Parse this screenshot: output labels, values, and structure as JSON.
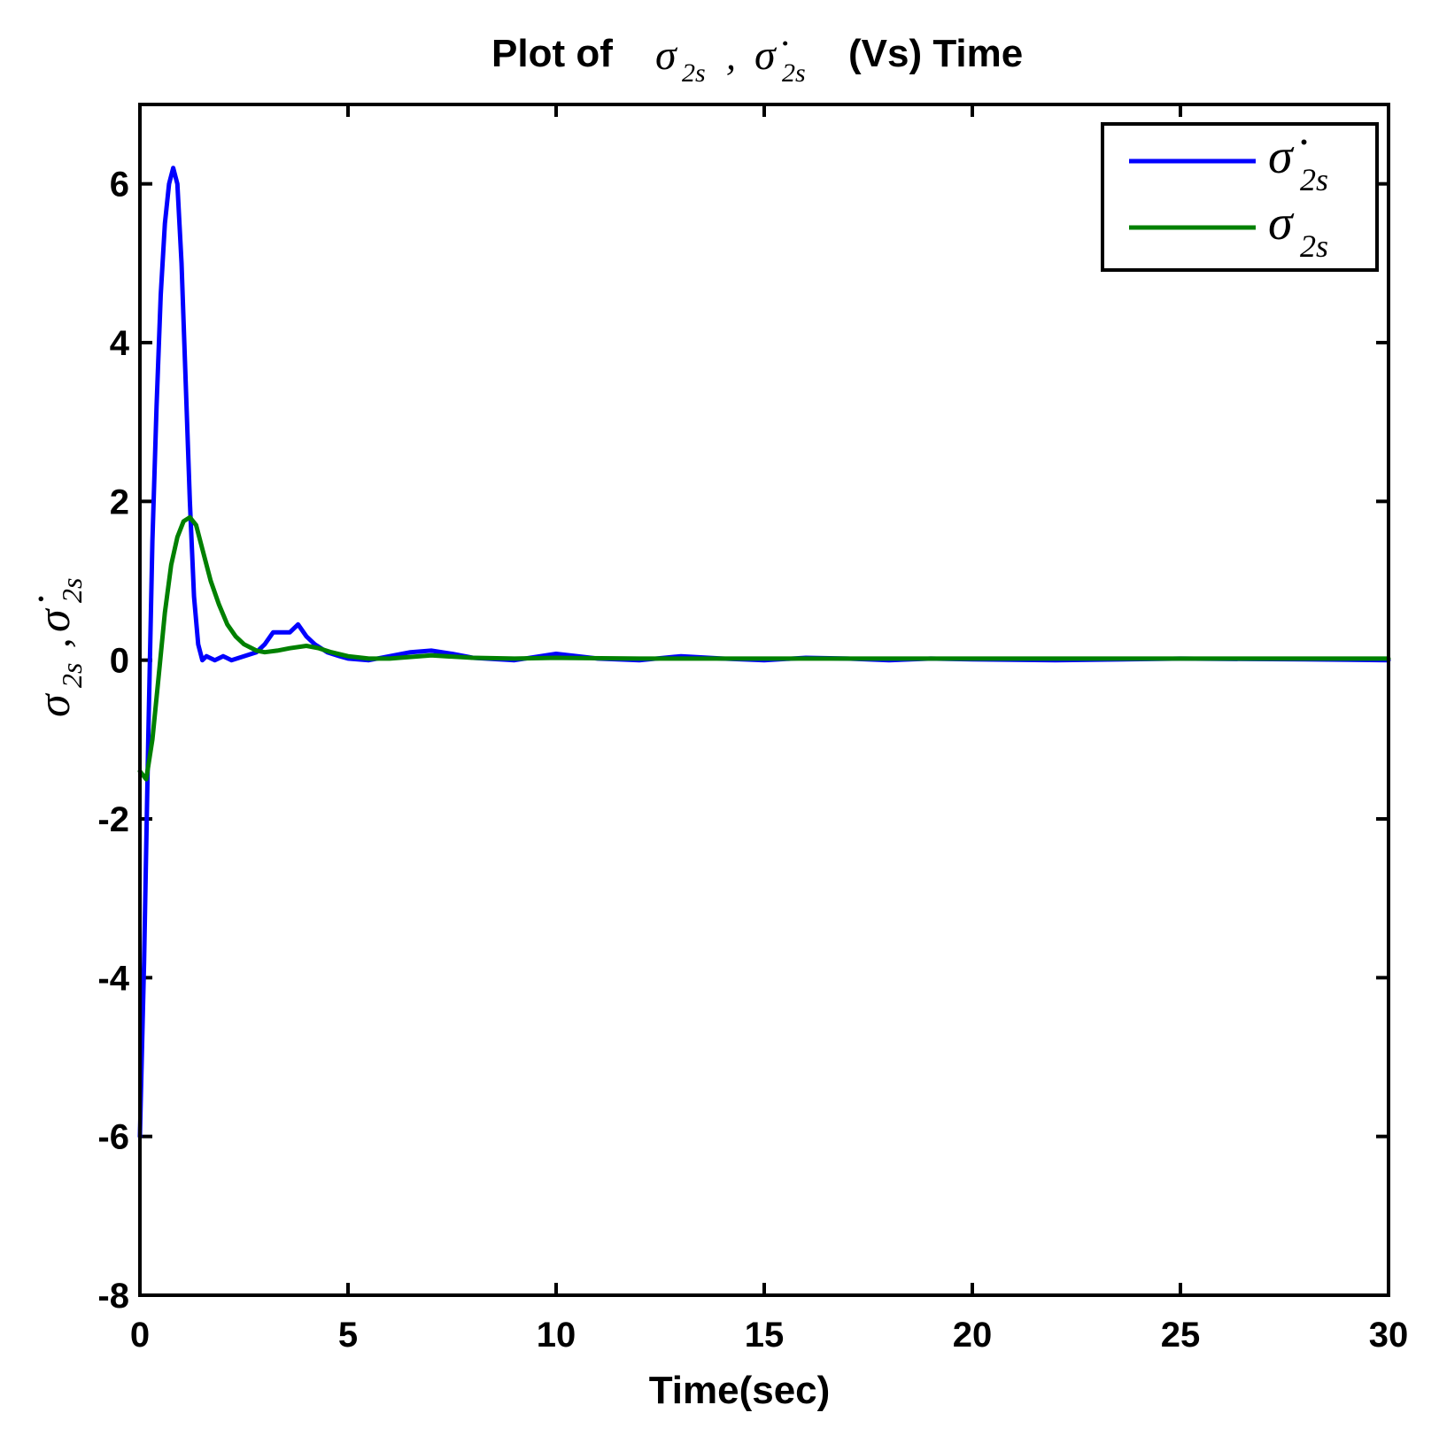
{
  "chart_data": {
    "type": "line",
    "title": {
      "prefix": "Plot of",
      "sym": "σ",
      "sub": "2s",
      "sep": ",",
      "dot_sym": "σ̇",
      "dot_sub": "2s",
      "suffix": "(Vs) Time"
    },
    "xlabel": "Time(sec)",
    "ylabel": {
      "sym": "σ",
      "sub": "2s",
      "sep": ",",
      "dot_sym": "σ̇",
      "dot_sub": "2s"
    },
    "xlim": [
      0,
      30
    ],
    "ylim": [
      -8,
      7
    ],
    "xticks": [
      0,
      5,
      10,
      15,
      20,
      25,
      30
    ],
    "yticks": [
      -8,
      -6,
      -4,
      -2,
      0,
      2,
      4,
      6
    ],
    "grid": false,
    "legend_position": "top-right",
    "series": [
      {
        "name": {
          "sym": "σ̇",
          "sub": "2s"
        },
        "color": "#0000ff",
        "x": [
          0,
          0.1,
          0.2,
          0.3,
          0.4,
          0.5,
          0.6,
          0.7,
          0.8,
          0.9,
          1.0,
          1.1,
          1.2,
          1.3,
          1.4,
          1.5,
          1.6,
          1.8,
          2.0,
          2.2,
          2.5,
          2.8,
          3.0,
          3.2,
          3.4,
          3.6,
          3.8,
          4.0,
          4.2,
          4.5,
          4.8,
          5.0,
          5.5,
          6.0,
          6.5,
          7.0,
          7.5,
          8.0,
          9.0,
          10.0,
          11.0,
          12.0,
          13.0,
          14.0,
          15.0,
          16.0,
          17.0,
          18.0,
          19.0,
          20.0,
          22.0,
          25.0,
          28.0,
          30.0
        ],
        "y": [
          -6.0,
          -3.8,
          -1.0,
          1.5,
          3.2,
          4.6,
          5.5,
          6.0,
          6.2,
          6.0,
          5.0,
          3.5,
          2.0,
          0.8,
          0.2,
          0.0,
          0.05,
          0.0,
          0.05,
          0.0,
          0.05,
          0.1,
          0.2,
          0.35,
          0.35,
          0.35,
          0.45,
          0.3,
          0.2,
          0.1,
          0.05,
          0.02,
          0.0,
          0.05,
          0.1,
          0.12,
          0.08,
          0.03,
          0.0,
          0.08,
          0.02,
          0.0,
          0.05,
          0.02,
          0.0,
          0.03,
          0.02,
          0.0,
          0.02,
          0.01,
          0.0,
          0.02,
          0.01,
          0.0
        ]
      },
      {
        "name": {
          "sym": "σ",
          "sub": "2s"
        },
        "color": "#008000",
        "x": [
          0,
          0.15,
          0.3,
          0.45,
          0.6,
          0.75,
          0.9,
          1.05,
          1.2,
          1.35,
          1.5,
          1.7,
          1.9,
          2.1,
          2.3,
          2.5,
          2.8,
          3.0,
          3.3,
          3.6,
          4.0,
          4.3,
          4.6,
          5.0,
          5.5,
          6.0,
          7.0,
          8.0,
          9.0,
          10.0,
          12.0,
          15.0,
          20.0,
          25.0,
          30.0
        ],
        "y": [
          -1.4,
          -1.5,
          -1.0,
          -0.2,
          0.6,
          1.2,
          1.55,
          1.75,
          1.8,
          1.7,
          1.4,
          1.0,
          0.7,
          0.45,
          0.3,
          0.2,
          0.12,
          0.1,
          0.12,
          0.15,
          0.18,
          0.15,
          0.1,
          0.05,
          0.02,
          0.02,
          0.06,
          0.03,
          0.02,
          0.03,
          0.02,
          0.02,
          0.02,
          0.02,
          0.02
        ]
      }
    ]
  }
}
